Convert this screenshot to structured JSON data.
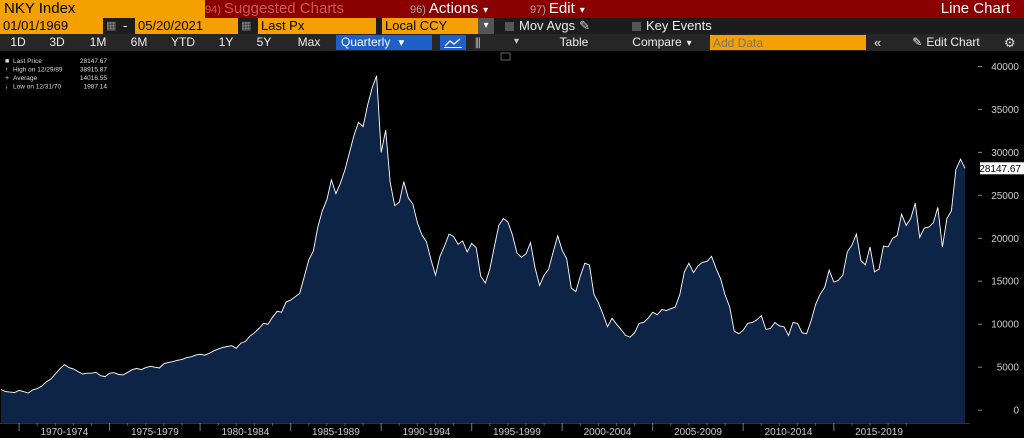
{
  "toolbar1": {
    "ticker": "NKY Index",
    "suggested": {
      "num": "94)",
      "label": "Suggested Charts"
    },
    "actions": {
      "num": "96)",
      "label": "Actions"
    },
    "edit": {
      "num": "97)",
      "label": "Edit"
    },
    "title": "Line Chart"
  },
  "toolbar2": {
    "start_date": "01/01/1969",
    "dash": "-",
    "end_date": "05/20/2021",
    "field": "Last Px",
    "currency": "Local CCY",
    "mov_avgs": "Mov Avgs",
    "key_events": "Key Events"
  },
  "toolbar3": {
    "periods": [
      "1D",
      "3D",
      "1M",
      "6M",
      "YTD",
      "1Y",
      "5Y",
      "Max"
    ],
    "frequency": "Quarterly",
    "table": "Table",
    "compare": "Compare",
    "add_data_placeholder": "Add Data",
    "edit_chart": "Edit Chart"
  },
  "legend": [
    {
      "label": "Last Price",
      "value": "28147.67"
    },
    {
      "label": "High on 12/29/89",
      "value": "38915.87"
    },
    {
      "label": "Average",
      "value": "14016.55"
    },
    {
      "label": "Low on 12/31/70",
      "value": "1987.14"
    }
  ],
  "colors": {
    "line": "#ffffff",
    "fill": "#0d2447",
    "header": "#8b0000",
    "accent": "#f4a000",
    "selected": "#1e5fc8"
  },
  "chart_data": {
    "type": "area",
    "series": [
      {
        "name": "Last Price",
        "x_start": "1969 Q1",
        "frequency": "quarterly",
        "values": [
          2400,
          2150,
          2100,
          2050,
          2300,
          2150,
          1987,
          2350,
          2500,
          2800,
          3300,
          3600,
          4200,
          4800,
          5300,
          4950,
          4800,
          4500,
          4200,
          4300,
          4300,
          4400,
          4000,
          3900,
          4300,
          4350,
          4150,
          4100,
          4400,
          4700,
          4850,
          4700,
          4950,
          5100,
          5000,
          4900,
          5400,
          5550,
          5650,
          5800,
          5900,
          6100,
          6200,
          6400,
          6500,
          6400,
          6600,
          6900,
          7100,
          7300,
          7400,
          7500,
          7200,
          7800,
          8000,
          8600,
          9000,
          9500,
          10100,
          10000,
          10800,
          11500,
          11400,
          12600,
          12800,
          13200,
          13600,
          15500,
          17500,
          18500,
          21300,
          23200,
          24500,
          26800,
          25200,
          26400,
          28000,
          30000,
          32000,
          33500,
          33000,
          35500,
          37500,
          38915,
          30000,
          32600,
          26500,
          23800,
          24200,
          26600,
          24700,
          24000,
          21800,
          20400,
          19600,
          17500,
          15700,
          17900,
          19100,
          20500,
          20200,
          19300,
          19700,
          18400,
          19400,
          18900,
          15600,
          14800,
          16400,
          19000,
          21500,
          22300,
          21900,
          20400,
          18300,
          17800,
          18200,
          19500,
          16600,
          14500,
          15700,
          16400,
          18400,
          20300,
          18600,
          17600,
          14200,
          13800,
          15600,
          17100,
          16900,
          13500,
          12500,
          11200,
          9700,
          10700,
          10000,
          9400,
          8700,
          8500,
          9000,
          10100,
          10200,
          10700,
          11400,
          11100,
          11700,
          11600,
          11800,
          12000,
          13500,
          16100,
          17100,
          16000,
          16800,
          17200,
          17300,
          17900,
          16500,
          15300,
          13400,
          12000,
          9200,
          8900,
          9300,
          10100,
          10200,
          10500,
          11000,
          9400,
          9500,
          10200,
          9800,
          9700,
          8700,
          10200,
          10100,
          9000,
          8900,
          10400,
          12300,
          13500,
          14300,
          16300,
          14900,
          15100,
          15700,
          18400,
          19200,
          20500,
          17400,
          16900,
          19000,
          16100,
          16400,
          19100,
          19000,
          20000,
          20300,
          22800,
          21500,
          22300,
          24100,
          20100,
          21200,
          21300,
          21800,
          23600,
          19000,
          22300,
          23200,
          28000,
          29200,
          28147
        ]
      }
    ],
    "x_tick_labels": [
      "1970-1974",
      "1975-1979",
      "1980-1984",
      "1985-1989",
      "1990-1994",
      "1995-1999",
      "2000-2004",
      "2005-2009",
      "2010-2014",
      "2015-2019"
    ],
    "y_ticks": [
      0,
      5000,
      10000,
      15000,
      20000,
      25000,
      30000,
      35000,
      40000
    ],
    "y_tick_labels": [
      "0",
      "5000",
      "10000",
      "15000",
      "20000",
      "25000",
      "30000",
      "35000",
      "40000"
    ],
    "ylim": [
      -1500,
      41800
    ],
    "last_value_label": "28147.67",
    "grid": false,
    "legend_position": "top-left"
  }
}
